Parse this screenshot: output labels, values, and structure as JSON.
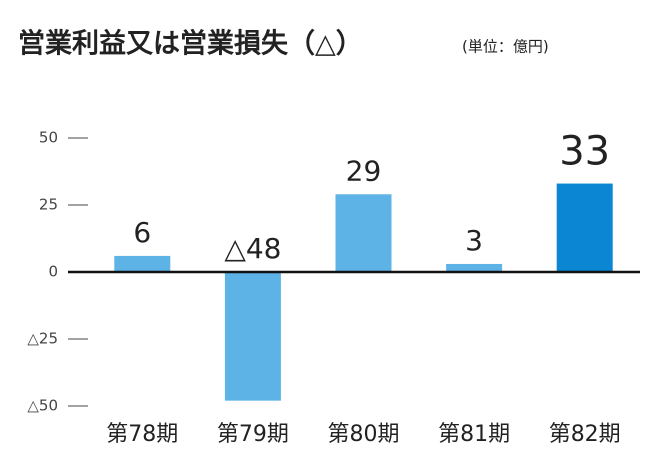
{
  "chart_data": {
    "type": "bar",
    "title": "営業利益又は営業損失（△）",
    "subtitle": "(単位：億円)",
    "categories": [
      "第78期",
      "第79期",
      "第80期",
      "第81期",
      "第82期"
    ],
    "values": [
      6,
      -48,
      29,
      3,
      33
    ],
    "value_labels": [
      "6",
      "△48",
      "29",
      "3",
      "33"
    ],
    "colors": [
      "#5db3e6",
      "#5db3e6",
      "#5db3e6",
      "#5db3e6",
      "#0a86d2"
    ],
    "ylim": [
      -50,
      50
    ],
    "yticks": [
      50,
      25,
      0,
      {
        "value": -25,
        "label": "△25"
      },
      {
        "value": -50,
        "label": "△50"
      }
    ]
  }
}
